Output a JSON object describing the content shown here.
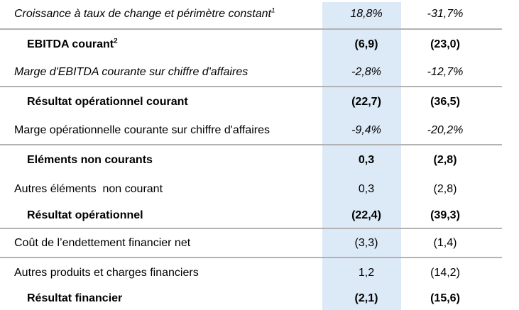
{
  "table": {
    "colors": {
      "highlight_column": "#dce9f6",
      "divider_line": "#b2b2b2",
      "text": "#000000"
    },
    "rows": [
      {
        "label": "Croissance à taux de change et périmètre constant",
        "sup": "1",
        "col1": "18,8%",
        "col2": "-31,7%"
      },
      {
        "label": "EBITDA courant",
        "sup": "2",
        "col1": "(6,9)",
        "col2": "(23,0)"
      },
      {
        "label": "Marge d'EBITDA courante sur chiffre d'affaires",
        "col1": "-2,8%",
        "col2": "-12,7%"
      },
      {
        "label": "Résultat opérationnel courant",
        "col1": "(22,7)",
        "col2": "(36,5)"
      },
      {
        "label": "Marge opérationnelle courante sur chiffre d'affaires",
        "col1": "-9,4%",
        "col2": "-20,2%"
      },
      {
        "label": "Eléments non courants",
        "col1": "0,3",
        "col2": "(2,8)"
      },
      {
        "label": "Autres éléments  non courant",
        "col1": "0,3",
        "col2": "(2,8)"
      },
      {
        "label": "Résultat opérationnel",
        "col1": "(22,4)",
        "col2": "(39,3)"
      },
      {
        "label": "Coût de l’endettement financier net",
        "col1": "(3,3)",
        "col2": "(1,4)"
      },
      {
        "label": "Autres produits et charges financiers",
        "col1": "1,2",
        "col2": "(14,2)"
      },
      {
        "label": "Résultat financier",
        "col1": "(2,1)",
        "col2": "(15,6)"
      }
    ]
  }
}
